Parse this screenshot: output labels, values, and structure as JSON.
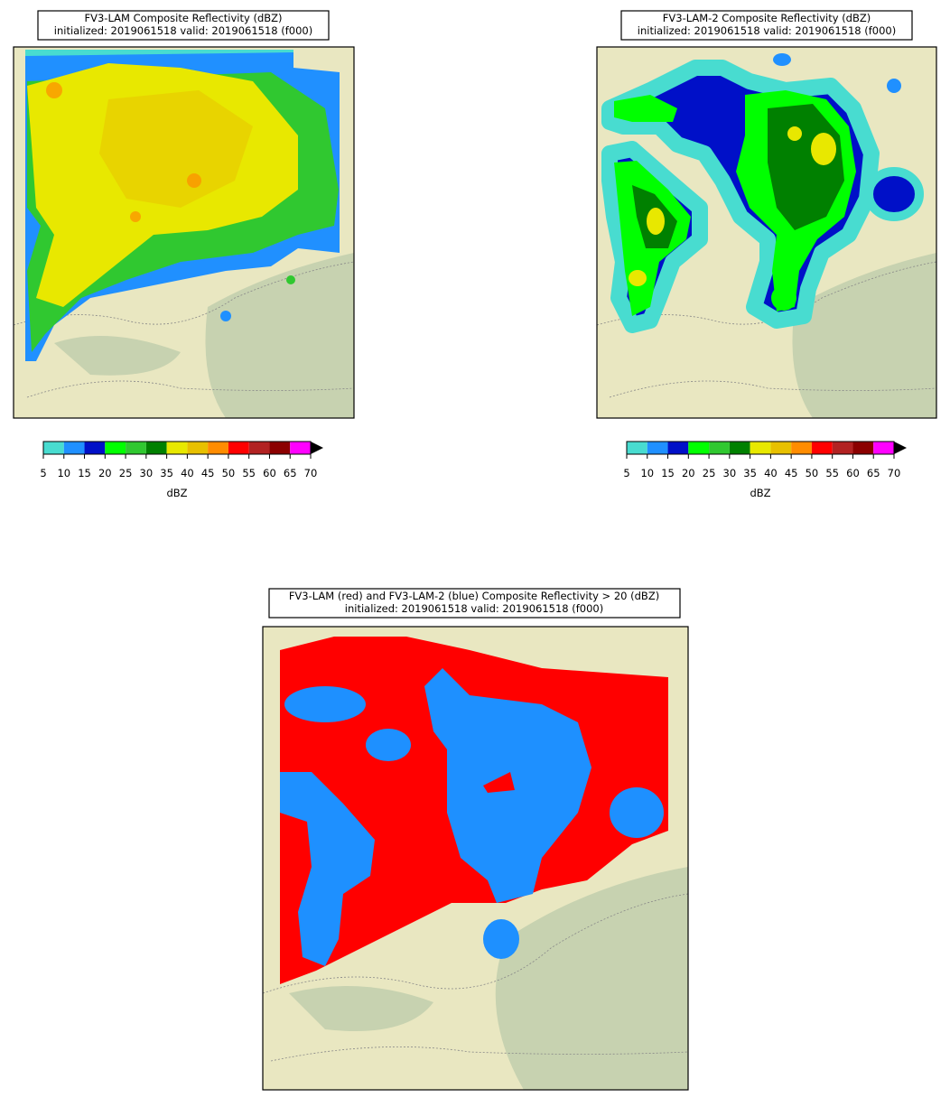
{
  "panels": [
    {
      "title": "FV3-LAM Composite Reflectivity (dBZ)",
      "subtitle": "initialized: 2019061518 valid: 2019061518 (f000)"
    },
    {
      "title": "FV3-LAM-2 Composite Reflectivity (dBZ)",
      "subtitle": "initialized: 2019061518 valid: 2019061518 (f000)"
    },
    {
      "title": "FV3-LAM (red) and FV3-LAM-2 (blue) Composite Reflectivity > 20 (dBZ)",
      "subtitle": "initialized: 2019061518 valid: 2019061518 (f000)"
    }
  ],
  "colorbar": {
    "label": "dBZ",
    "range": [
      5,
      70
    ],
    "ticks": [
      5,
      10,
      15,
      20,
      25,
      30,
      35,
      40,
      45,
      50,
      55,
      60,
      65,
      70
    ],
    "colors": [
      "#48dcd0",
      "#2090ff",
      "#0010c8",
      "#00ff00",
      "#30c830",
      "#008000",
      "#e8e800",
      "#e8c000",
      "#ff8c00",
      "#ff0000",
      "#b22222",
      "#8b0000",
      "#ff00ff"
    ],
    "extend_color": "#000000"
  }
}
